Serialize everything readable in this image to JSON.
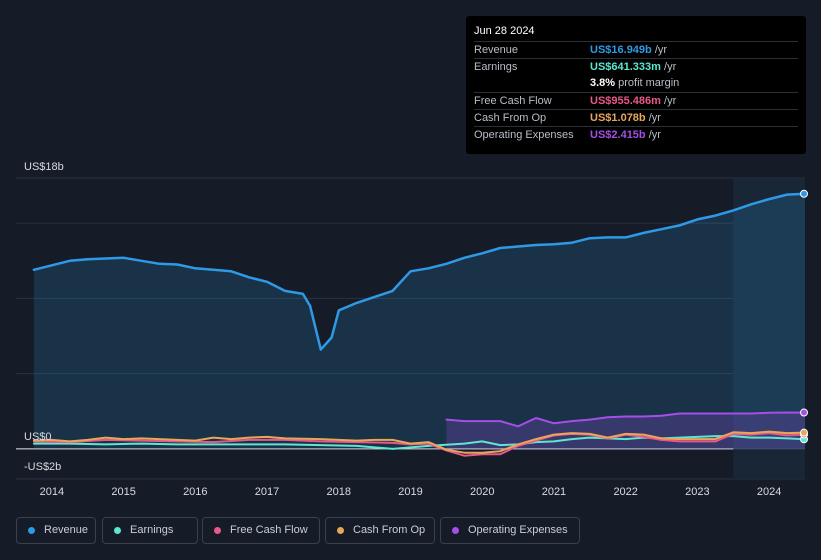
{
  "tooltip": {
    "date": "Jun 28 2024",
    "rows": [
      {
        "label": "Revenue",
        "value": "US$16.949b",
        "suffix": " /yr",
        "color": "#2e9ae6"
      },
      {
        "label": "Earnings",
        "value": "US$641.333m",
        "suffix": " /yr",
        "color": "#5ee6d0"
      },
      {
        "label": "",
        "value": "3.8%",
        "suffix": " profit margin",
        "color": "#ffffff"
      },
      {
        "label": "Free Cash Flow",
        "value": "US$955.486m",
        "suffix": " /yr",
        "color": "#e8588a"
      },
      {
        "label": "Cash From Op",
        "value": "US$1.078b",
        "suffix": " /yr",
        "color": "#e8a65a"
      },
      {
        "label": "Operating Expenses",
        "value": "US$2.415b",
        "suffix": " /yr",
        "color": "#a64ee8"
      }
    ]
  },
  "legend": [
    {
      "label": "Revenue",
      "color": "#2e9ae6"
    },
    {
      "label": "Earnings",
      "color": "#5ee6d0"
    },
    {
      "label": "Free Cash Flow",
      "color": "#e8588a"
    },
    {
      "label": "Cash From Op",
      "color": "#e8a65a"
    },
    {
      "label": "Operating Expenses",
      "color": "#a64ee8"
    }
  ],
  "chart_data": {
    "type": "line",
    "y_tick_labels": [
      "US$18b",
      "US$0",
      "-US$2b"
    ],
    "x_tick_labels": [
      "2014",
      "2015",
      "2016",
      "2017",
      "2018",
      "2019",
      "2020",
      "2021",
      "2022",
      "2023",
      "2024"
    ],
    "ylim": [
      -2,
      18
    ],
    "xlim": [
      2013.5,
      2024.5
    ],
    "highlight_range": [
      2023.5,
      2024.5
    ],
    "series": [
      {
        "name": "Revenue",
        "color": "#2e9ae6",
        "area": true,
        "points": [
          [
            2013.75,
            11.9
          ],
          [
            2014.0,
            12.2
          ],
          [
            2014.25,
            12.5
          ],
          [
            2014.5,
            12.6
          ],
          [
            2014.75,
            12.65
          ],
          [
            2015.0,
            12.7
          ],
          [
            2015.25,
            12.5
          ],
          [
            2015.5,
            12.3
          ],
          [
            2015.75,
            12.25
          ],
          [
            2016.0,
            12.0
          ],
          [
            2016.25,
            11.9
          ],
          [
            2016.5,
            11.8
          ],
          [
            2016.75,
            11.4
          ],
          [
            2017.0,
            11.1
          ],
          [
            2017.25,
            10.5
          ],
          [
            2017.5,
            10.3
          ],
          [
            2017.6,
            9.5
          ],
          [
            2017.75,
            6.6
          ],
          [
            2017.9,
            7.4
          ],
          [
            2018.0,
            9.2
          ],
          [
            2018.25,
            9.7
          ],
          [
            2018.5,
            10.1
          ],
          [
            2018.75,
            10.5
          ],
          [
            2019.0,
            11.8
          ],
          [
            2019.25,
            12.0
          ],
          [
            2019.5,
            12.3
          ],
          [
            2019.75,
            12.7
          ],
          [
            2020.0,
            13.0
          ],
          [
            2020.25,
            13.35
          ],
          [
            2020.5,
            13.45
          ],
          [
            2020.75,
            13.55
          ],
          [
            2021.0,
            13.6
          ],
          [
            2021.25,
            13.7
          ],
          [
            2021.5,
            14.0
          ],
          [
            2021.75,
            14.05
          ],
          [
            2022.0,
            14.05
          ],
          [
            2022.25,
            14.35
          ],
          [
            2022.5,
            14.6
          ],
          [
            2022.75,
            14.85
          ],
          [
            2023.0,
            15.25
          ],
          [
            2023.25,
            15.5
          ],
          [
            2023.5,
            15.85
          ],
          [
            2023.75,
            16.25
          ],
          [
            2024.0,
            16.6
          ],
          [
            2024.25,
            16.9
          ],
          [
            2024.5,
            16.95
          ]
        ]
      },
      {
        "name": "Operating Expenses",
        "color": "#a64ee8",
        "area": true,
        "points": [
          [
            2019.5,
            1.95
          ],
          [
            2019.75,
            1.85
          ],
          [
            2020.0,
            1.85
          ],
          [
            2020.25,
            1.85
          ],
          [
            2020.5,
            1.5
          ],
          [
            2020.75,
            2.05
          ],
          [
            2021.0,
            1.7
          ],
          [
            2021.25,
            1.85
          ],
          [
            2021.5,
            1.95
          ],
          [
            2021.75,
            2.1
          ],
          [
            2022.0,
            2.15
          ],
          [
            2022.25,
            2.15
          ],
          [
            2022.5,
            2.2
          ],
          [
            2022.75,
            2.35
          ],
          [
            2023.0,
            2.35
          ],
          [
            2023.25,
            2.35
          ],
          [
            2023.5,
            2.35
          ],
          [
            2023.75,
            2.35
          ],
          [
            2024.0,
            2.4
          ],
          [
            2024.25,
            2.42
          ],
          [
            2024.5,
            2.415
          ]
        ]
      },
      {
        "name": "Earnings",
        "color": "#5ee6d0",
        "area": false,
        "points": [
          [
            2013.75,
            0.35
          ],
          [
            2014.25,
            0.35
          ],
          [
            2014.75,
            0.3
          ],
          [
            2015.25,
            0.35
          ],
          [
            2015.75,
            0.3
          ],
          [
            2016.25,
            0.3
          ],
          [
            2016.75,
            0.3
          ],
          [
            2017.25,
            0.3
          ],
          [
            2017.75,
            0.25
          ],
          [
            2018.25,
            0.2
          ],
          [
            2018.75,
            0.0
          ],
          [
            2019.25,
            0.2
          ],
          [
            2019.75,
            0.35
          ],
          [
            2020.0,
            0.5
          ],
          [
            2020.25,
            0.25
          ],
          [
            2020.5,
            0.3
          ],
          [
            2020.75,
            0.45
          ],
          [
            2021.0,
            0.5
          ],
          [
            2021.25,
            0.65
          ],
          [
            2021.5,
            0.75
          ],
          [
            2021.75,
            0.7
          ],
          [
            2022.0,
            0.65
          ],
          [
            2022.25,
            0.75
          ],
          [
            2022.5,
            0.7
          ],
          [
            2022.75,
            0.75
          ],
          [
            2023.0,
            0.8
          ],
          [
            2023.25,
            0.85
          ],
          [
            2023.5,
            0.85
          ],
          [
            2023.75,
            0.75
          ],
          [
            2024.0,
            0.75
          ],
          [
            2024.25,
            0.7
          ],
          [
            2024.5,
            0.64
          ]
        ]
      },
      {
        "name": "Free Cash Flow",
        "color": "#e8588a",
        "area": false,
        "points": [
          [
            2013.75,
            0.5
          ],
          [
            2014.25,
            0.45
          ],
          [
            2014.75,
            0.6
          ],
          [
            2015.25,
            0.55
          ],
          [
            2015.75,
            0.5
          ],
          [
            2016.25,
            0.45
          ],
          [
            2016.75,
            0.6
          ],
          [
            2017.25,
            0.6
          ],
          [
            2017.75,
            0.5
          ],
          [
            2018.25,
            0.45
          ],
          [
            2018.75,
            0.4
          ],
          [
            2019.0,
            0.3
          ],
          [
            2019.25,
            0.35
          ],
          [
            2019.5,
            -0.1
          ],
          [
            2019.75,
            -0.45
          ],
          [
            2020.0,
            -0.35
          ],
          [
            2020.25,
            -0.35
          ],
          [
            2020.5,
            0.2
          ],
          [
            2020.75,
            0.55
          ],
          [
            2021.0,
            0.9
          ],
          [
            2021.25,
            1.0
          ],
          [
            2021.5,
            0.95
          ],
          [
            2021.75,
            0.7
          ],
          [
            2022.0,
            0.95
          ],
          [
            2022.25,
            0.8
          ],
          [
            2022.5,
            0.6
          ],
          [
            2022.75,
            0.5
          ],
          [
            2023.0,
            0.5
          ],
          [
            2023.25,
            0.5
          ],
          [
            2023.5,
            1.0
          ],
          [
            2023.75,
            0.95
          ],
          [
            2024.0,
            1.05
          ],
          [
            2024.25,
            0.9
          ],
          [
            2024.5,
            0.96
          ]
        ]
      },
      {
        "name": "Cash From Op",
        "color": "#e8a65a",
        "area": false,
        "points": [
          [
            2013.75,
            0.55
          ],
          [
            2014.0,
            0.6
          ],
          [
            2014.25,
            0.5
          ],
          [
            2014.5,
            0.6
          ],
          [
            2014.75,
            0.75
          ],
          [
            2015.0,
            0.65
          ],
          [
            2015.25,
            0.7
          ],
          [
            2015.5,
            0.65
          ],
          [
            2015.75,
            0.6
          ],
          [
            2016.0,
            0.55
          ],
          [
            2016.25,
            0.75
          ],
          [
            2016.5,
            0.65
          ],
          [
            2016.75,
            0.75
          ],
          [
            2017.0,
            0.8
          ],
          [
            2017.25,
            0.7
          ],
          [
            2017.75,
            0.65
          ],
          [
            2018.0,
            0.6
          ],
          [
            2018.25,
            0.55
          ],
          [
            2018.5,
            0.6
          ],
          [
            2018.75,
            0.6
          ],
          [
            2019.0,
            0.35
          ],
          [
            2019.25,
            0.45
          ],
          [
            2019.5,
            -0.05
          ],
          [
            2019.75,
            -0.25
          ],
          [
            2020.0,
            -0.25
          ],
          [
            2020.25,
            -0.15
          ],
          [
            2020.5,
            0.3
          ],
          [
            2020.75,
            0.65
          ],
          [
            2021.0,
            0.95
          ],
          [
            2021.25,
            1.05
          ],
          [
            2021.5,
            1.0
          ],
          [
            2021.75,
            0.75
          ],
          [
            2022.0,
            1.0
          ],
          [
            2022.25,
            0.95
          ],
          [
            2022.5,
            0.7
          ],
          [
            2022.75,
            0.65
          ],
          [
            2023.0,
            0.65
          ],
          [
            2023.25,
            0.65
          ],
          [
            2023.5,
            1.1
          ],
          [
            2023.75,
            1.05
          ],
          [
            2024.0,
            1.15
          ],
          [
            2024.25,
            1.05
          ],
          [
            2024.5,
            1.08
          ]
        ]
      }
    ]
  }
}
